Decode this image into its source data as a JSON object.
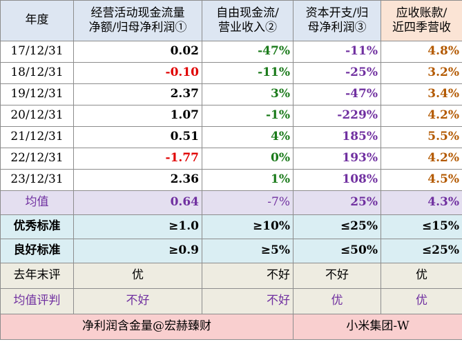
{
  "header": {
    "year": "年度",
    "col1_line1": "经营活动现金流量",
    "col1_line2": "净额/归母净利润①",
    "col2_line1": "自由现金流/",
    "col2_line2": "营业收入②",
    "col3_line1": "资本开支/归",
    "col3_line2": "母净利润③",
    "col4_line1": "应收账款/",
    "col4_line2": "近四季营收"
  },
  "rows": [
    {
      "date": "17/12/31",
      "c1": "0.02",
      "c2": "-47%",
      "c3": "-11%",
      "c4": "4.8%"
    },
    {
      "date": "18/12/31",
      "c1": "-0.10",
      "c2": "-11%",
      "c3": "-25%",
      "c4": "3.2%"
    },
    {
      "date": "19/12/31",
      "c1": "2.37",
      "c2": "3%",
      "c3": "-47%",
      "c4": "3.4%"
    },
    {
      "date": "20/12/31",
      "c1": "1.07",
      "c2": "-1%",
      "c3": "-229%",
      "c4": "4.2%"
    },
    {
      "date": "21/12/31",
      "c1": "0.51",
      "c2": "4%",
      "c3": "185%",
      "c4": "5.5%"
    },
    {
      "date": "22/12/31",
      "c1": "-1.77",
      "c2": "0%",
      "c3": "193%",
      "c4": "4.2%"
    },
    {
      "date": "23/12/31",
      "c1": "2.36",
      "c2": "1%",
      "c3": "108%",
      "c4": "4.5%"
    }
  ],
  "average": {
    "label": "均值",
    "c1": "0.64",
    "c2": "-7%",
    "c3": "25%",
    "c4": "4.3%"
  },
  "excellent": {
    "label": "优秀标准",
    "c1": "≥1.0",
    "c2": "≥10%",
    "c3": "≤25%",
    "c4": "≤15%"
  },
  "good": {
    "label": "良好标准",
    "c1": "≥0.9",
    "c2": "≥5%",
    "c3": "≤50%",
    "c4": "≤25%"
  },
  "last_year_eval": {
    "label": "去年末评",
    "c1": "优",
    "c2": "不好",
    "c3": "不好",
    "c4": "优"
  },
  "avg_eval": {
    "label": "均值评判",
    "c1": "不好",
    "c2": "不好",
    "c3": "优",
    "c4": "优"
  },
  "footer": {
    "left": "净利润含金量@宏赫臻财",
    "right": "小米集团-W"
  },
  "colors": {
    "header_bg": "#dde6f2",
    "header_last_bg": "#fbe4d5",
    "avg_bg": "#e4dff0",
    "std_bg": "#daeef3",
    "eval_bg": "#eeece1",
    "footer_bg": "#f9cfcf",
    "negative": "#e00000",
    "green": "#1a7a1a",
    "purple": "#7030a0",
    "brown": "#b35900"
  }
}
